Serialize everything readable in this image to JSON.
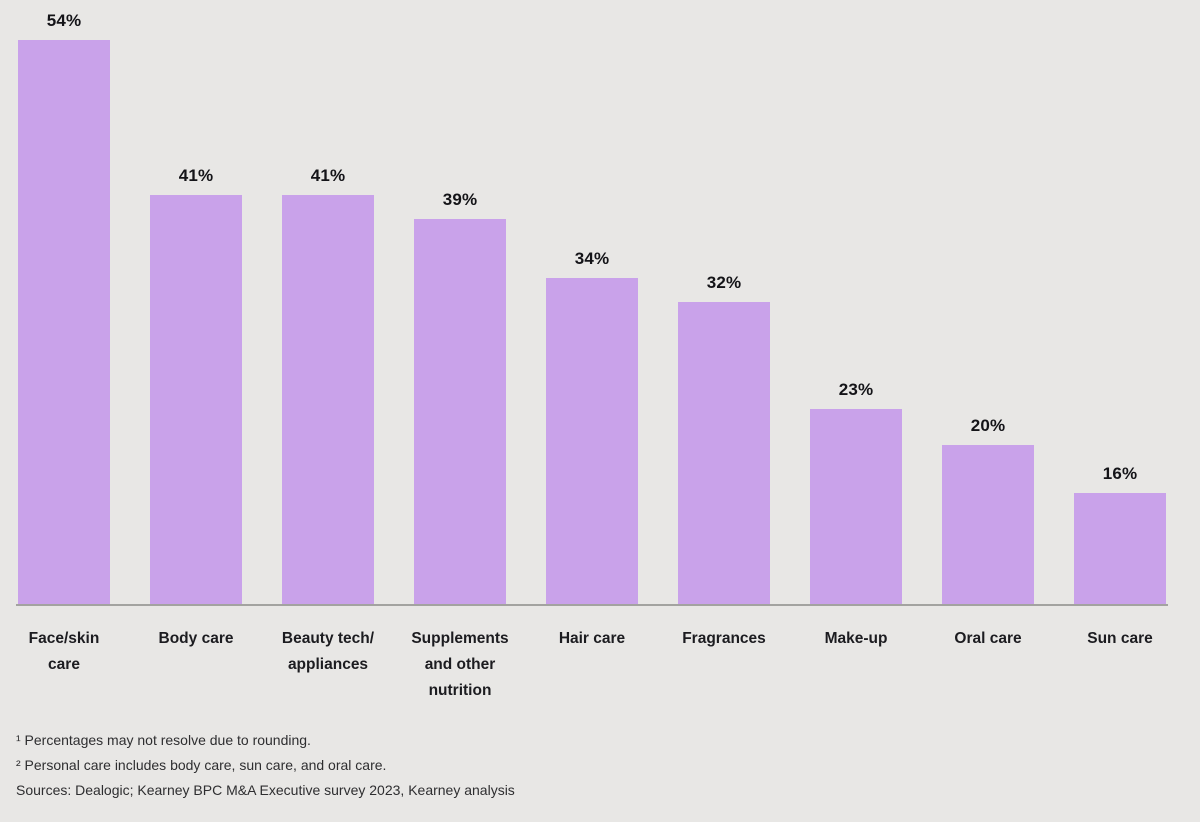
{
  "page": {
    "background_color": "#e8e7e5"
  },
  "chart_data": {
    "type": "bar",
    "title": "",
    "xlabel": "",
    "ylabel": "",
    "categories": [
      "Face/skin care",
      "Body care",
      "Beauty tech/appliances",
      "Supplements and other nutrition",
      "Hair care",
      "Fragrances",
      "Make-up",
      "Oral care",
      "Sun care"
    ],
    "category_lines": [
      [
        "Face/skin",
        "care"
      ],
      [
        "Body care"
      ],
      [
        "Beauty tech/",
        "appliances"
      ],
      [
        "Supplements",
        "and other",
        "nutrition"
      ],
      [
        "Hair care"
      ],
      [
        "Fragrances"
      ],
      [
        "Make-up"
      ],
      [
        "Oral care"
      ],
      [
        "Sun care"
      ]
    ],
    "values": [
      54,
      41,
      41,
      39,
      34,
      32,
      23,
      20,
      16
    ],
    "value_labels": [
      "54%",
      "41%",
      "41%",
      "39%",
      "34%",
      "32%",
      "23%",
      "20%",
      "16%"
    ],
    "unit": "%",
    "ylim": [
      0,
      60
    ],
    "grid": false,
    "legend": "none",
    "bar_color": "#c9a2ea",
    "value_label_color": "#141418",
    "axis_line_color": "#a3a3a0"
  },
  "footnotes": {
    "note1": "¹ Percentages may not resolve due to rounding.",
    "note2": "² Personal care includes body care, sun care, and oral care.",
    "sources": "Sources: Dealogic; Kearney BPC M&A Executive survey 2023, Kearney analysis"
  }
}
